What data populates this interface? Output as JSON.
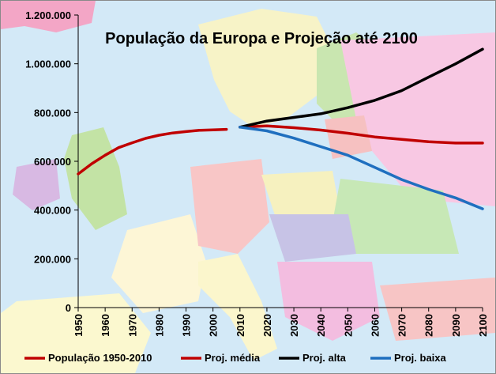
{
  "chart_data": {
    "type": "line",
    "title": "População da Europa e Projeção até 2100",
    "xlabel": "",
    "ylabel": "",
    "xlim": [
      1950,
      2100
    ],
    "ylim": [
      0,
      1200000
    ],
    "x_ticks": [
      "1950",
      "1960",
      "1970",
      "1980",
      "1990",
      "2000",
      "2010",
      "2020",
      "2030",
      "2040",
      "2050",
      "2060",
      "2070",
      "2080",
      "2090",
      "2100"
    ],
    "y_ticks": [
      "0",
      "200.000",
      "400.000",
      "600.000",
      "800.000",
      "1.000.000",
      "1.200.000"
    ],
    "y_tick_values": [
      0,
      200000,
      400000,
      600000,
      800000,
      1000000,
      1200000
    ],
    "legend_position": "bottom",
    "grid": false,
    "series": [
      {
        "name": "População 1950-2010",
        "color": "#c00000",
        "x": [
          1950,
          1955,
          1960,
          1965,
          1970,
          1975,
          1980,
          1985,
          1990,
          1995,
          2000,
          2005
        ],
        "y": [
          548000,
          590000,
          625000,
          656000,
          676000,
          694000,
          707000,
          716000,
          722000,
          727000,
          729000,
          731000
        ]
      },
      {
        "name": "Proj. média",
        "color": "#c00000",
        "x": [
          2010,
          2020,
          2030,
          2040,
          2050,
          2060,
          2070,
          2080,
          2090,
          2100
        ],
        "y": [
          740000,
          745000,
          738000,
          728000,
          715000,
          700000,
          690000,
          680000,
          675000,
          675000
        ]
      },
      {
        "name": "Proj. alta",
        "color": "#000000",
        "x": [
          2010,
          2020,
          2030,
          2040,
          2050,
          2060,
          2070,
          2080,
          2090,
          2100
        ],
        "y": [
          740000,
          765000,
          780000,
          795000,
          820000,
          850000,
          890000,
          945000,
          1000000,
          1060000
        ]
      },
      {
        "name": "Proj. baixa",
        "color": "#1f6fbf",
        "x": [
          2010,
          2020,
          2030,
          2040,
          2050,
          2060,
          2070,
          2080,
          2090,
          2100
        ],
        "y": [
          740000,
          725000,
          695000,
          660000,
          625000,
          575000,
          525000,
          485000,
          450000,
          405000
        ]
      }
    ]
  }
}
